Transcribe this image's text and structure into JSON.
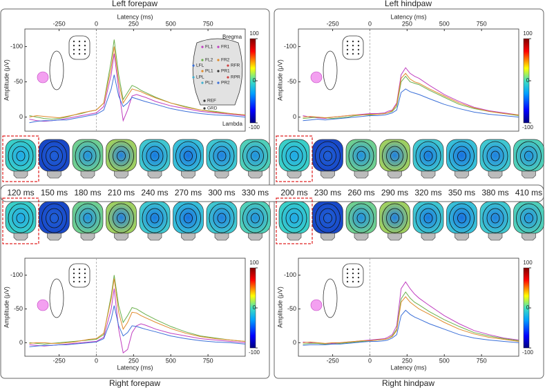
{
  "chart_data": [
    {
      "type": "line",
      "title": "Left forepaw",
      "xlabel": "Latency (ms)",
      "ylabel": "Amplitude (μV)",
      "xaxis": "top",
      "xlim": [
        -480,
        1000
      ],
      "ylim": [
        20,
        -125
      ],
      "xticks": [
        -250,
        0,
        250,
        500,
        750
      ],
      "yticks": [
        -100,
        -50,
        0
      ],
      "clim": [
        -100,
        100
      ],
      "cticks": [
        100,
        0,
        -100
      ],
      "x": [
        -450,
        -400,
        -350,
        -300,
        -250,
        -200,
        -150,
        -100,
        -50,
        0,
        50,
        100,
        120,
        150,
        180,
        210,
        240,
        270,
        300,
        330,
        400,
        500,
        600,
        700,
        800,
        900,
        1000
      ],
      "series": [
        {
          "color": "#6ab04c",
          "values": [
            -2,
            0,
            2,
            3,
            2,
            0,
            -3,
            -5,
            -8,
            -10,
            -20,
            -80,
            -110,
            -60,
            -25,
            -35,
            -45,
            -42,
            -38,
            -35,
            -28,
            -20,
            -15,
            -10,
            -8,
            -5,
            -3
          ]
        },
        {
          "color": "#c03ec0",
          "values": [
            3,
            5,
            6,
            5,
            4,
            2,
            0,
            -2,
            -4,
            -6,
            -15,
            -60,
            -90,
            -40,
            5,
            -10,
            -30,
            -32,
            -30,
            -28,
            -22,
            -16,
            -12,
            -8,
            -6,
            -4,
            -2
          ]
        },
        {
          "color": "#3a6fd8",
          "values": [
            8,
            6,
            5,
            5,
            4,
            4,
            2,
            0,
            -2,
            -4,
            -10,
            -40,
            -60,
            -30,
            -15,
            -20,
            -28,
            -26,
            -24,
            -22,
            -18,
            -12,
            -8,
            -5,
            -3,
            -2,
            0
          ]
        },
        {
          "color": "#e08a2a",
          "values": [
            0,
            -2,
            -1,
            0,
            1,
            -1,
            -3,
            -6,
            -8,
            -10,
            -20,
            -70,
            -100,
            -50,
            -20,
            -30,
            -40,
            -38,
            -36,
            -33,
            -27,
            -20,
            -14,
            -10,
            -7,
            -5,
            -3
          ]
        }
      ]
    },
    {
      "type": "line",
      "title": "Left hindpaw",
      "xlabel": "Latency (ms)",
      "ylabel": "Amplitude (μV)",
      "xaxis": "top",
      "xlim": [
        -480,
        1000
      ],
      "ylim": [
        20,
        -125
      ],
      "xticks": [
        -250,
        0,
        250,
        500,
        750
      ],
      "yticks": [
        -100,
        -50,
        0
      ],
      "clim": [
        -100,
        100
      ],
      "cticks": [
        100,
        0,
        -100
      ],
      "x": [
        -450,
        -400,
        -350,
        -300,
        -250,
        -200,
        -150,
        -100,
        -50,
        0,
        50,
        100,
        120,
        150,
        180,
        210,
        240,
        270,
        300,
        330,
        400,
        500,
        600,
        700,
        800,
        900,
        1000
      ],
      "series": [
        {
          "color": "#c03ec0",
          "values": [
            -2,
            0,
            1,
            2,
            0,
            -1,
            -2,
            -3,
            -4,
            -5,
            -5,
            -6,
            -8,
            -10,
            -20,
            -60,
            -70,
            -62,
            -58,
            -55,
            -45,
            -32,
            -22,
            -14,
            -9,
            -6,
            -3
          ]
        },
        {
          "color": "#6ab04c",
          "values": [
            2,
            1,
            0,
            1,
            2,
            1,
            0,
            -2,
            -3,
            -3,
            -4,
            -5,
            -6,
            -8,
            -15,
            -50,
            -58,
            -50,
            -48,
            -46,
            -38,
            -28,
            -18,
            -12,
            -8,
            -5,
            -2
          ]
        },
        {
          "color": "#3a6fd8",
          "values": [
            5,
            4,
            3,
            4,
            3,
            2,
            1,
            0,
            -1,
            -2,
            -2,
            -3,
            -4,
            -6,
            -10,
            -35,
            -40,
            -36,
            -34,
            -32,
            -26,
            -18,
            -12,
            -7,
            -4,
            -2,
            0
          ]
        },
        {
          "color": "#e08a2a",
          "values": [
            0,
            -1,
            0,
            1,
            0,
            -1,
            -2,
            -3,
            -3,
            -4,
            -4,
            -5,
            -6,
            -9,
            -18,
            -55,
            -62,
            -54,
            -50,
            -48,
            -40,
            -30,
            -20,
            -13,
            -8,
            -5,
            -3
          ]
        }
      ]
    },
    {
      "type": "line",
      "title": "Right forepaw",
      "xlabel": "Latency (ms)",
      "ylabel": "Amplitude (μV)",
      "xaxis": "bottom",
      "xlim": [
        -480,
        1000
      ],
      "ylim": [
        20,
        -125
      ],
      "xticks": [
        -250,
        0,
        250,
        500,
        750
      ],
      "yticks": [
        -100,
        -50,
        0
      ],
      "clim": [
        -100,
        100
      ],
      "cticks": [
        100,
        0,
        -100
      ],
      "x": [
        -450,
        -400,
        -350,
        -300,
        -250,
        -200,
        -150,
        -100,
        -50,
        0,
        50,
        100,
        120,
        150,
        180,
        210,
        240,
        270,
        300,
        330,
        400,
        500,
        600,
        700,
        800,
        900,
        1000
      ],
      "series": [
        {
          "color": "#6ab04c",
          "values": [
            0,
            1,
            2,
            1,
            0,
            -1,
            -2,
            -3,
            -4,
            -5,
            -12,
            -70,
            -100,
            -55,
            -30,
            -40,
            -52,
            -50,
            -46,
            -42,
            -34,
            -24,
            -16,
            -10,
            -7,
            -4,
            -2
          ]
        },
        {
          "color": "#c03ec0",
          "values": [
            3,
            4,
            5,
            4,
            3,
            2,
            1,
            0,
            -1,
            -2,
            -8,
            -50,
            -80,
            -20,
            15,
            10,
            -15,
            -25,
            -28,
            -26,
            -20,
            -14,
            -10,
            -6,
            -4,
            -2,
            0
          ]
        },
        {
          "color": "#3a6fd8",
          "values": [
            6,
            5,
            4,
            4,
            3,
            3,
            2,
            1,
            0,
            -1,
            -6,
            -35,
            -55,
            -25,
            -10,
            -15,
            -25,
            -24,
            -22,
            -20,
            -16,
            -10,
            -6,
            -3,
            -1,
            0,
            2
          ]
        },
        {
          "color": "#e08a2a",
          "values": [
            1,
            0,
            0,
            1,
            1,
            0,
            -1,
            -3,
            -5,
            -6,
            -14,
            -65,
            -95,
            -45,
            -20,
            -30,
            -45,
            -44,
            -40,
            -37,
            -30,
            -21,
            -14,
            -9,
            -6,
            -4,
            -2
          ]
        }
      ]
    },
    {
      "type": "line",
      "title": "Right hindpaw",
      "xlabel": "Latency (ms)",
      "ylabel": "Amplitude (μV)",
      "xaxis": "bottom",
      "xlim": [
        -480,
        1000
      ],
      "ylim": [
        20,
        -125
      ],
      "xticks": [
        -250,
        0,
        250,
        500,
        750
      ],
      "yticks": [
        -100,
        -50,
        0
      ],
      "clim": [
        -100,
        100
      ],
      "cticks": [
        100,
        0,
        -100
      ],
      "x": [
        -450,
        -400,
        -350,
        -300,
        -250,
        -200,
        -150,
        -100,
        -50,
        0,
        50,
        100,
        120,
        150,
        180,
        210,
        240,
        270,
        300,
        330,
        400,
        500,
        600,
        700,
        800,
        900,
        1000
      ],
      "series": [
        {
          "color": "#c03ec0",
          "values": [
            -1,
            0,
            1,
            2,
            1,
            0,
            -1,
            -2,
            -3,
            -4,
            -5,
            -6,
            -8,
            -12,
            -25,
            -80,
            -90,
            -80,
            -72,
            -66,
            -55,
            -40,
            -28,
            -18,
            -12,
            -7,
            -4
          ]
        },
        {
          "color": "#6ab04c",
          "values": [
            2,
            1,
            1,
            2,
            2,
            1,
            0,
            -1,
            -2,
            -3,
            -4,
            -5,
            -6,
            -10,
            -20,
            -65,
            -75,
            -66,
            -60,
            -56,
            -46,
            -34,
            -24,
            -15,
            -10,
            -6,
            -3
          ]
        },
        {
          "color": "#3a6fd8",
          "values": [
            4,
            3,
            3,
            3,
            2,
            2,
            1,
            0,
            -1,
            -2,
            -2,
            -3,
            -4,
            -7,
            -12,
            -40,
            -48,
            -42,
            -38,
            -35,
            -28,
            -20,
            -12,
            -7,
            -4,
            -2,
            0
          ]
        },
        {
          "color": "#e08a2a",
          "values": [
            0,
            -1,
            0,
            1,
            0,
            0,
            -1,
            -2,
            -3,
            -3,
            -4,
            -5,
            -6,
            -9,
            -18,
            -60,
            -68,
            -60,
            -55,
            -50,
            -42,
            -30,
            -20,
            -13,
            -8,
            -5,
            -2
          ]
        }
      ]
    }
  ],
  "topomap_times": {
    "forepaw": [
      "120 ms",
      "150 ms",
      "180 ms",
      "210 ms",
      "240 ms",
      "270 ms",
      "300 ms",
      "330 ms"
    ],
    "hindpaw": [
      "200 ms",
      "230 ms",
      "260 ms",
      "290 ms",
      "320 ms",
      "350 ms",
      "380 ms",
      "410 ms"
    ]
  },
  "electrode_map": {
    "landmarks": [
      "Bregma",
      "Lambda"
    ],
    "electrodes": [
      "FL1",
      "FR1",
      "FL2",
      "FR2",
      "LFL",
      "RFR",
      "PL1",
      "PR1",
      "LPL",
      "RPR",
      "PL2",
      "PR2",
      "REF",
      "GRD"
    ]
  }
}
